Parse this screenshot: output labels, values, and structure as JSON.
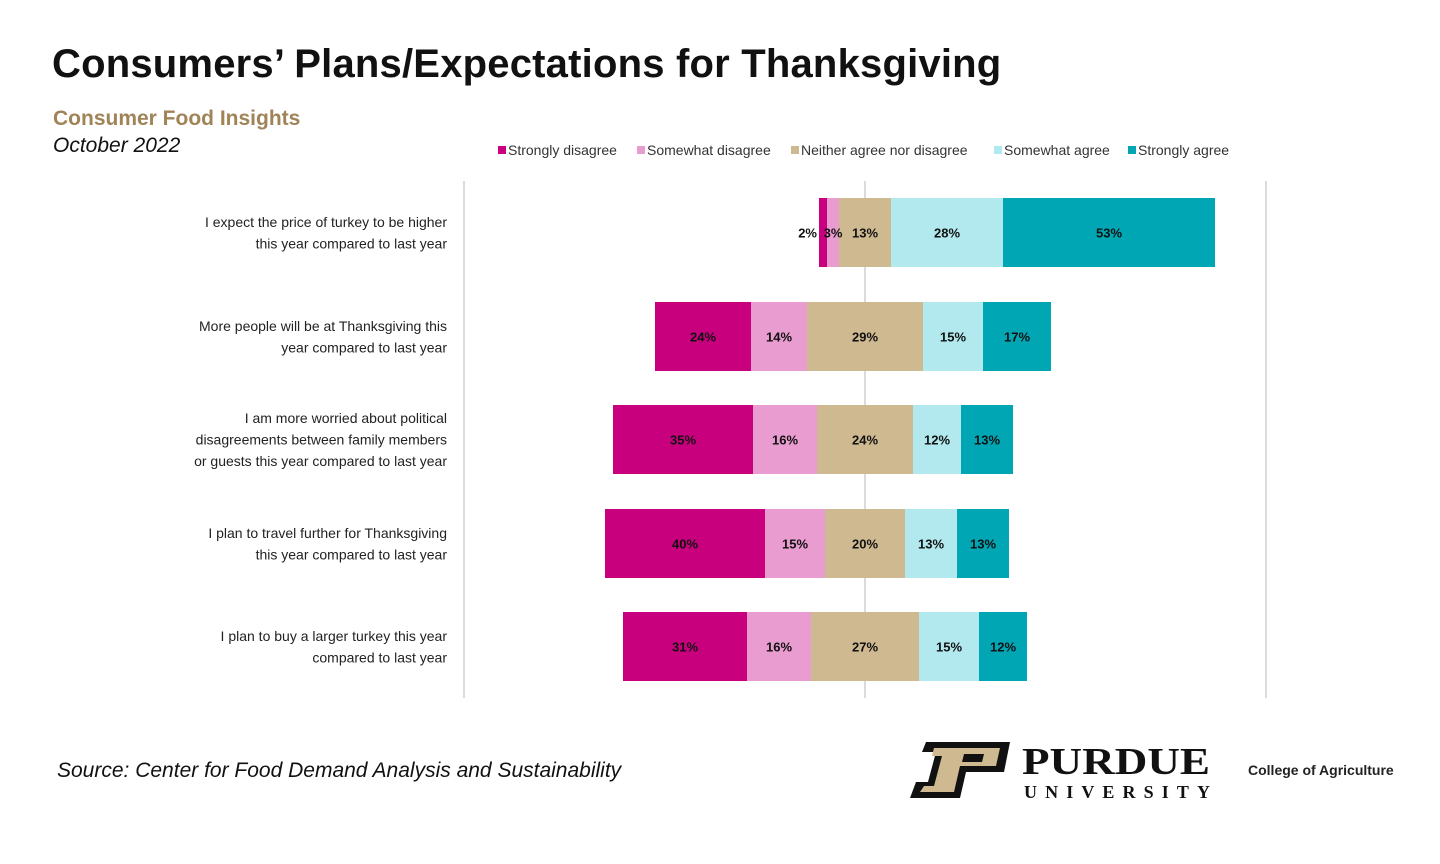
{
  "header": {
    "title": "Consumers’ Plans/Expectations for Thanksgiving",
    "subtitle": "Consumer Food Insights",
    "date": "October 2022"
  },
  "footer": {
    "source": "Source:  Center for Food Demand Analysis and Sustainability",
    "brand_name": "PURDUE",
    "brand_sub": "UNIVERSITY",
    "college": "College of Agriculture"
  },
  "colors": {
    "strongly_disagree": "#c8007d",
    "somewhat_disagree": "#e99ccf",
    "neither": "#cfb991",
    "somewhat_agree": "#b1e9ee",
    "strongly_agree": "#00a6b4",
    "gold": "#cfb991"
  },
  "chart_data": {
    "type": "bar",
    "orientation": "horizontal",
    "stacked": "diverging",
    "legend_position": "top",
    "categories": [
      [
        "I expect the price of turkey to be higher",
        "this year compared to last year"
      ],
      [
        "More people will be at Thanksgiving this",
        "year compared to last year"
      ],
      [
        "I am more worried about political",
        "disagreements between family members",
        "or guests this year compared to last year"
      ],
      [
        "I plan to travel further for Thanksgiving",
        "this year compared to last year"
      ],
      [
        "I plan to buy a larger turkey this year",
        "compared to last year"
      ]
    ],
    "series": [
      {
        "name": "Strongly disagree",
        "color": "#c8007d",
        "values": [
          2,
          24,
          35,
          40,
          31
        ]
      },
      {
        "name": "Somewhat disagree",
        "color": "#e99ccf",
        "values": [
          3,
          14,
          16,
          15,
          16
        ]
      },
      {
        "name": "Neither agree nor disagree",
        "color": "#cfb991",
        "values": [
          13,
          29,
          24,
          20,
          27
        ]
      },
      {
        "name": "Somewhat agree",
        "color": "#b1e9ee",
        "values": [
          28,
          15,
          12,
          13,
          15
        ]
      },
      {
        "name": "Strongly agree",
        "color": "#00a6b4",
        "values": [
          53,
          17,
          13,
          13,
          12
        ]
      }
    ],
    "value_suffix": "%",
    "grid": false
  }
}
